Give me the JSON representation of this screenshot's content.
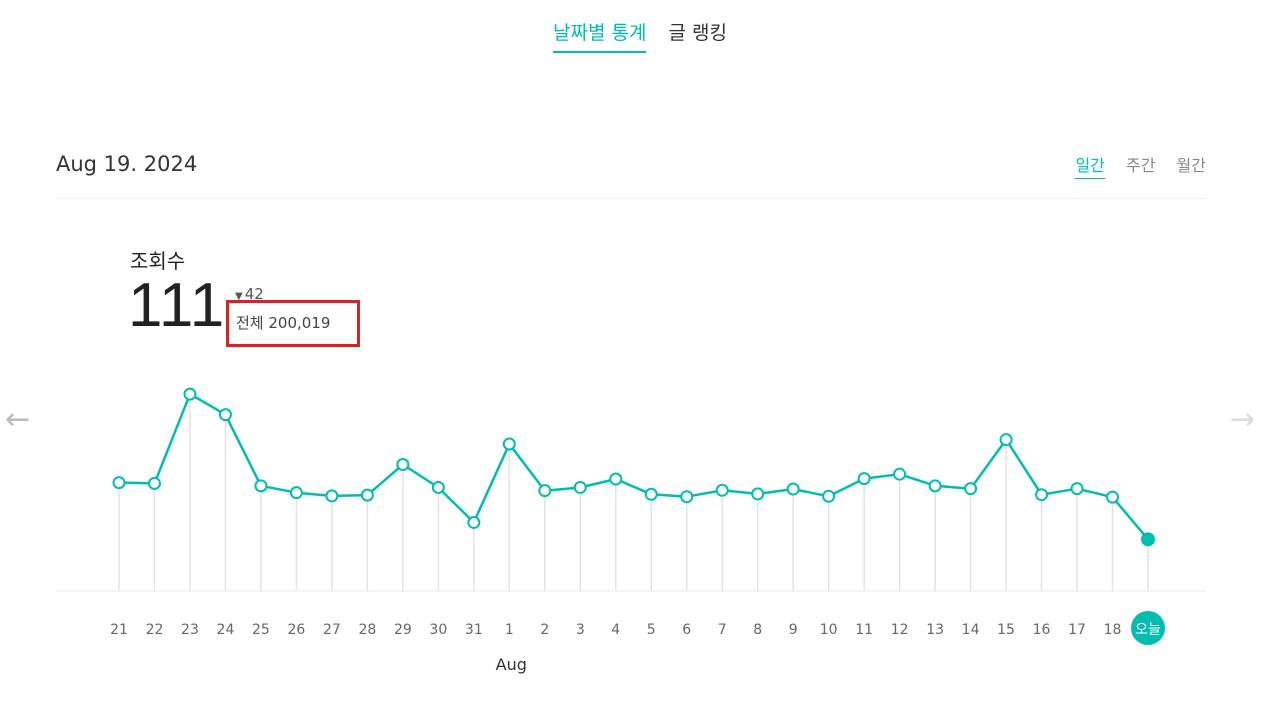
{
  "top_tabs": [
    {
      "label": "날짜별 통계",
      "active": true
    },
    {
      "label": "글 랭킹",
      "active": false
    }
  ],
  "date_label": "Aug 19. 2024",
  "period_tabs": [
    {
      "label": "일간",
      "active": true
    },
    {
      "label": "주간",
      "active": false
    },
    {
      "label": "월간",
      "active": false
    }
  ],
  "stats": {
    "title": "조회수",
    "value": "111",
    "delta": "42",
    "total": "전체 200,019"
  },
  "colors": {
    "accent": "#00bdb1",
    "highlight_box": "#e02020"
  },
  "nav": {
    "prev_icon": "arrow-left-icon",
    "next_icon": "arrow-right-icon"
  },
  "chart_data": {
    "type": "line",
    "title": "",
    "xlabel": "",
    "ylabel": "",
    "categories": [
      "21",
      "22",
      "23",
      "24",
      "25",
      "26",
      "27",
      "28",
      "29",
      "30",
      "31",
      "1",
      "2",
      "3",
      "4",
      "5",
      "6",
      "7",
      "8",
      "9",
      "10",
      "11",
      "12",
      "13",
      "14",
      "15",
      "16",
      "17",
      "18",
      "오늘"
    ],
    "month_label": {
      "text": "Aug",
      "at": "1"
    },
    "series": [
      {
        "values": [
          252,
          250,
          472,
          421,
          244,
          227,
          219,
          221,
          297,
          240,
          153,
          348,
          232,
          240,
          261,
          223,
          217,
          233,
          224,
          236,
          218,
          262,
          273,
          244,
          237,
          359,
          222,
          237,
          216,
          111
        ]
      }
    ],
    "ylim": [
      0,
      500
    ],
    "grid": false,
    "today_index": 29
  }
}
